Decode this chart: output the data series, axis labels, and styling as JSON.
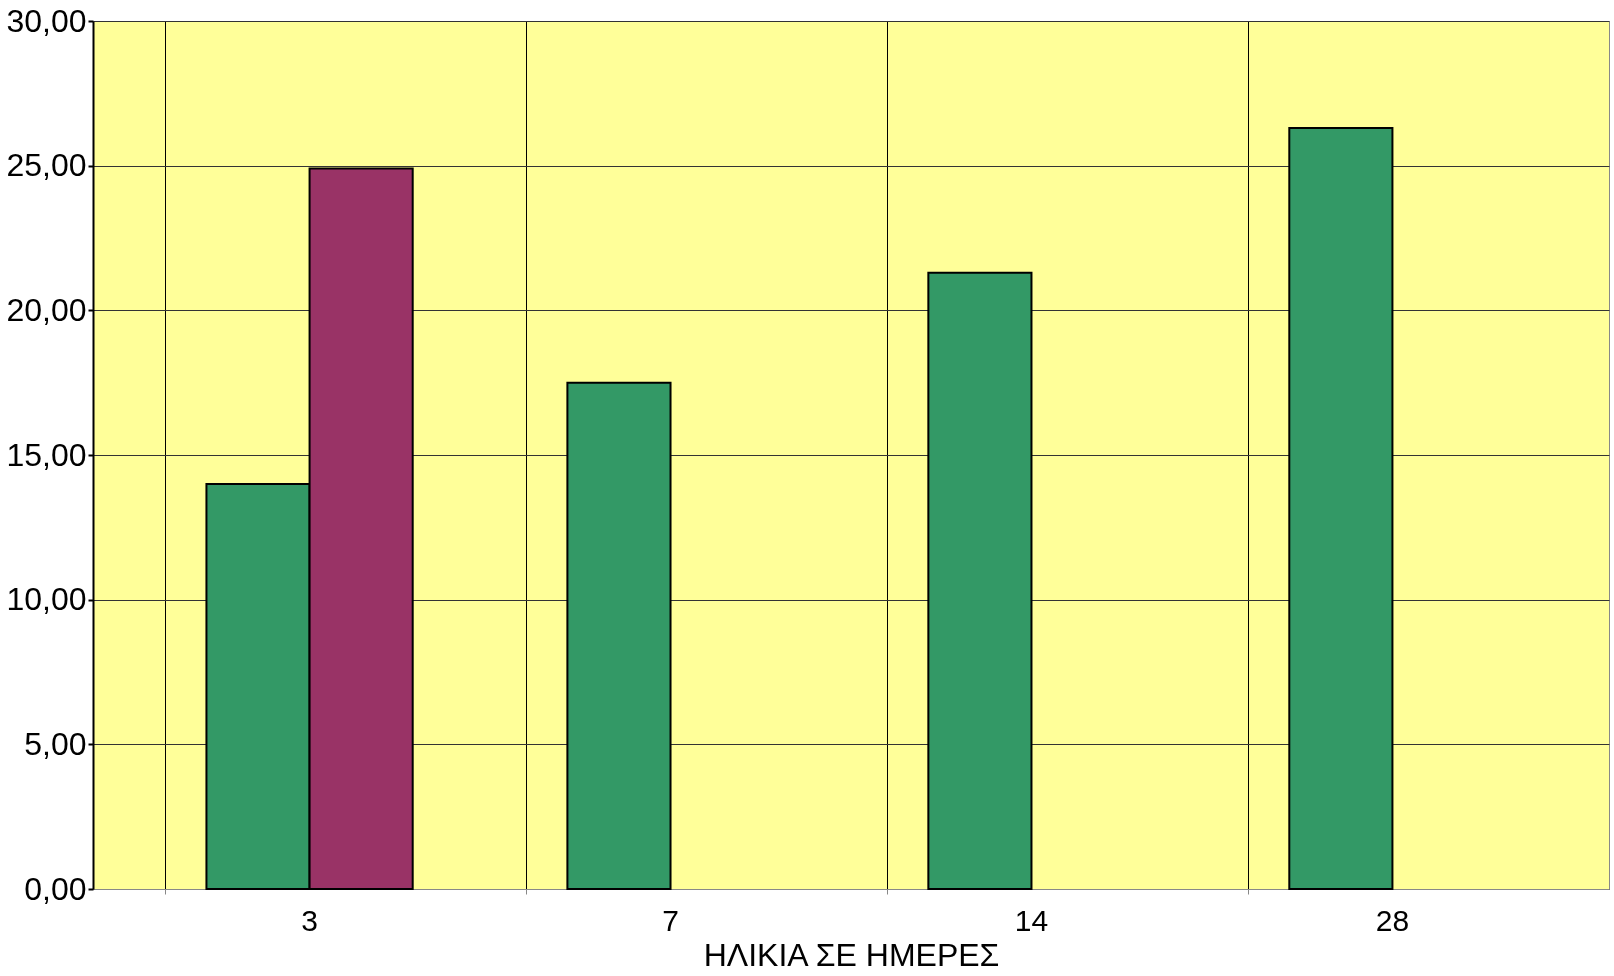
{
  "chart_data": {
    "type": "bar",
    "xlabel": "ΗΛΙΚΙΑ ΣΕ ΗΜΕΡΕΣ",
    "categories": [
      "3",
      "7",
      "14",
      "28"
    ],
    "series": [
      {
        "color": "#339966",
        "values": [
          14.0,
          17.5,
          21.3,
          26.3
        ]
      },
      {
        "color": "#993366",
        "values": [
          24.9,
          null,
          null,
          null
        ]
      }
    ],
    "ylim": [
      0,
      30
    ],
    "yticks": [
      {
        "value": 0,
        "label": "0,00"
      },
      {
        "value": 5,
        "label": "5,00"
      },
      {
        "value": 10,
        "label": "10,00"
      },
      {
        "value": 15,
        "label": "15,00"
      },
      {
        "value": 20,
        "label": "20,00"
      },
      {
        "value": 25,
        "label": "25,00"
      },
      {
        "value": 30,
        "label": "30,00"
      }
    ],
    "grid": true
  }
}
